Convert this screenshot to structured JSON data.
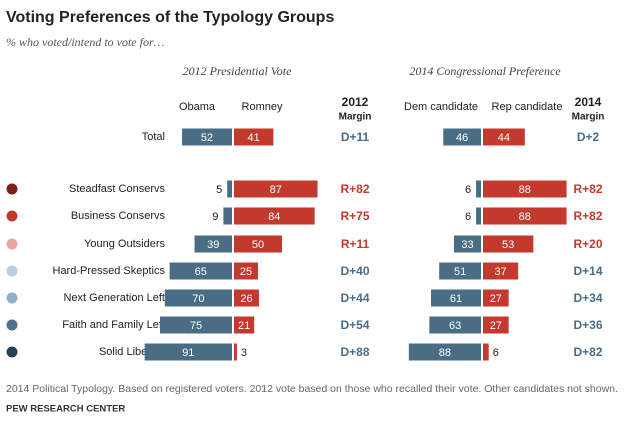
{
  "title": "Voting Preferences of the Typology Groups",
  "subtitle": "% who voted/intend to vote for…",
  "note": "2014 Political Typology. Based on registered voters. 2012 vote based on those who recalled their vote. Other candidates not shown.",
  "source": "PEW RESEARCH CENTER",
  "chart_data": [
    {
      "type": "bar",
      "title": "2012 Presidential Vote",
      "categories": [
        "Total",
        "Steadfast Conservs",
        "Business Conservs",
        "Young Outsiders",
        "Hard-Pressed Skeptics",
        "Next Generation Left",
        "Faith and Family Left",
        "Solid Liberals"
      ],
      "category_colors": [
        null,
        "#7a1f1a",
        "#c0392b",
        "#eba5a1",
        "#b9cfe0",
        "#8eafc7",
        "#4e7189",
        "#2a4354"
      ],
      "series": [
        {
          "name": "Obama",
          "color": "#4a6d86",
          "values": [
            52,
            5,
            9,
            39,
            65,
            70,
            75,
            91
          ]
        },
        {
          "name": "Romney",
          "color": "#c4392e",
          "values": [
            41,
            87,
            84,
            50,
            25,
            26,
            21,
            3
          ]
        }
      ],
      "margin_title": [
        "2012",
        "Margin"
      ],
      "margins": [
        "D+11",
        "R+82",
        "R+75",
        "R+11",
        "D+40",
        "D+44",
        "D+54",
        "D+88"
      ]
    },
    {
      "type": "bar",
      "title": "2014 Congressional Preference",
      "series": [
        {
          "name": "Dem candidate",
          "color": "#4a6d86",
          "values": [
            46,
            6,
            6,
            33,
            51,
            61,
            63,
            88
          ]
        },
        {
          "name": "Rep candidate",
          "color": "#c4392e",
          "values": [
            44,
            88,
            88,
            53,
            37,
            27,
            27,
            6
          ]
        }
      ],
      "margin_title": [
        "2014",
        "Margin"
      ],
      "margins": [
        "D+2",
        "R+82",
        "R+82",
        "R+20",
        "D+14",
        "D+34",
        "D+36",
        "D+82"
      ]
    }
  ]
}
